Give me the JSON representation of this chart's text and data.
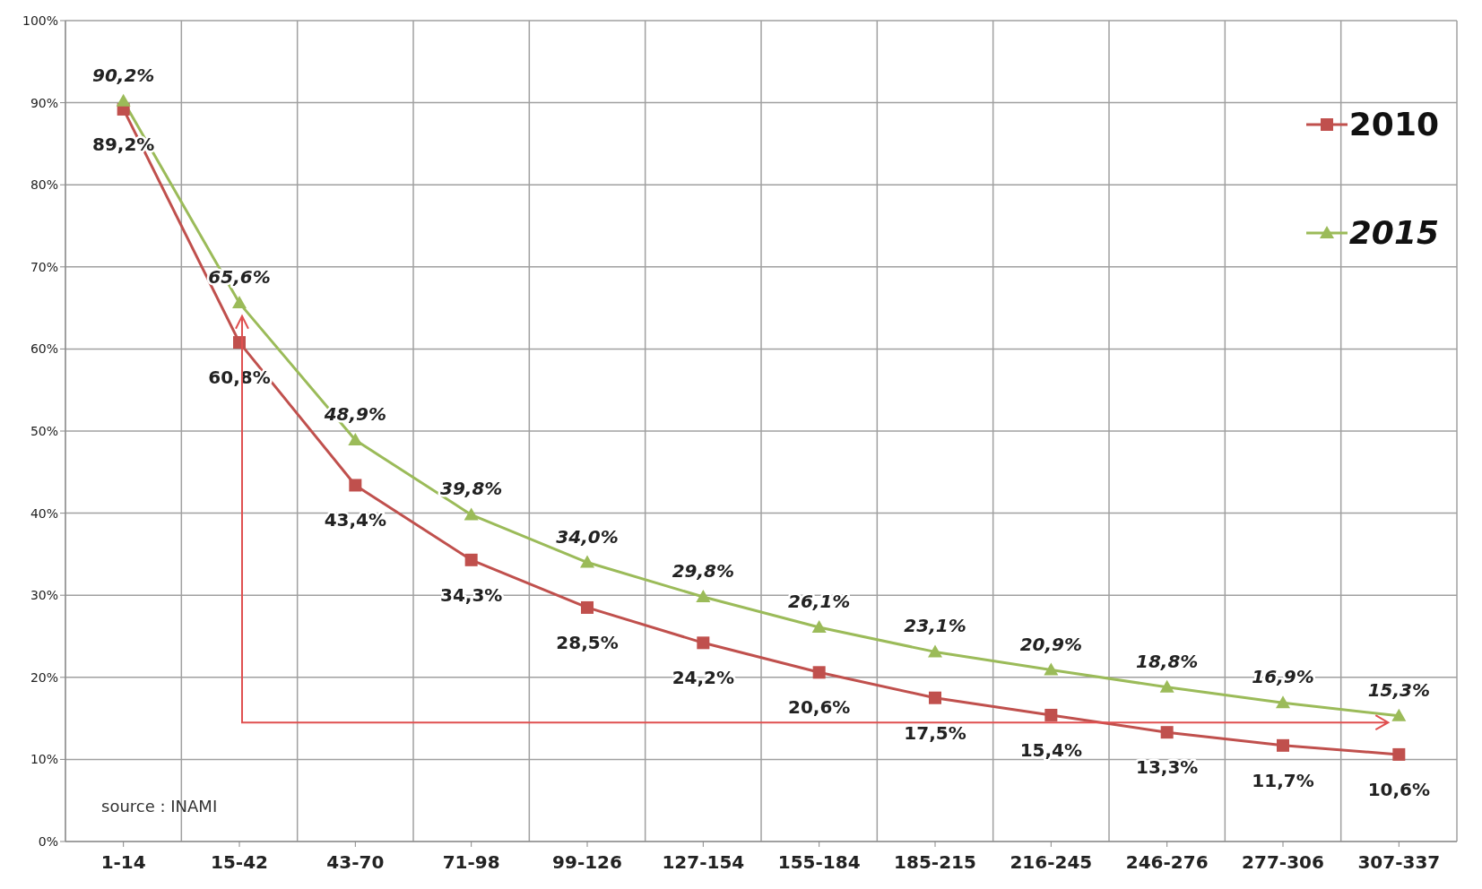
{
  "chart_data": {
    "type": "line",
    "categories": [
      "1-14",
      "15-42",
      "43-70",
      "71-98",
      "99-126",
      "127-154",
      "155-184",
      "185-215",
      "216-245",
      "246-276",
      "277-306",
      "307-337"
    ],
    "series": [
      {
        "name": "2010",
        "color": "#c0504d",
        "marker": "square",
        "values": [
          89.2,
          60.8,
          43.4,
          34.3,
          28.5,
          24.2,
          20.6,
          17.5,
          15.4,
          13.3,
          11.7,
          10.6
        ],
        "value_labels": [
          "89,2%",
          "60,8%",
          "43,4%",
          "34,3%",
          "28,5%",
          "24,2%",
          "20,6%",
          "17,5%",
          "15,4%",
          "13,3%",
          "11,7%",
          "10,6%"
        ]
      },
      {
        "name": "2015",
        "color": "#9bbb59",
        "marker": "triangle",
        "values": [
          90.2,
          65.6,
          48.9,
          39.8,
          34.0,
          29.8,
          26.1,
          23.1,
          20.9,
          18.8,
          16.9,
          15.3
        ],
        "value_labels": [
          "90,2%",
          "65,6%",
          "48,9%",
          "39,8%",
          "34,0%",
          "29,8%",
          "26,1%",
          "23,1%",
          "20,9%",
          "18,8%",
          "16,9%",
          "15,3%"
        ]
      }
    ],
    "ylim": [
      0,
      100
    ],
    "yticks": [
      {
        "value": 0,
        "label": "0%"
      },
      {
        "value": 10,
        "label": "10%"
      },
      {
        "value": 20,
        "label": "20%"
      },
      {
        "value": 30,
        "label": "30%"
      },
      {
        "value": 40,
        "label": "40%"
      },
      {
        "value": 50,
        "label": "50%"
      },
      {
        "value": 60,
        "label": "60%"
      },
      {
        "value": 70,
        "label": "70%"
      },
      {
        "value": 80,
        "label": "80%"
      },
      {
        "value": 90,
        "label": "90%"
      },
      {
        "value": 100,
        "label": "100%"
      }
    ],
    "grid": true,
    "legend": "top right",
    "line_style": "solid",
    "annotations": [
      "source : INAMI"
    ]
  }
}
